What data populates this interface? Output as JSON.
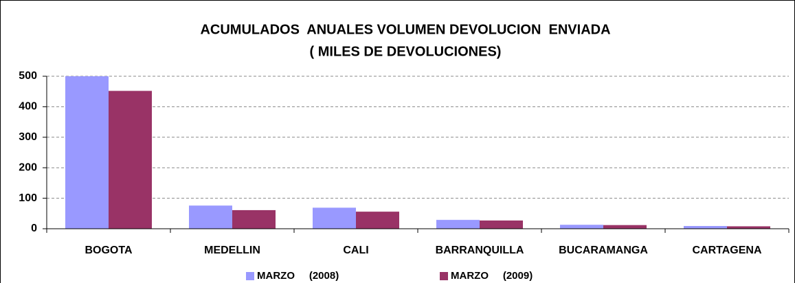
{
  "chart_data": {
    "type": "bar",
    "title": "ACUMULADOS  ANUALES VOLUMEN DEVOLUCION  ENVIADA",
    "subtitle": "( MILES DE DEVOLUCIONES)",
    "categories": [
      "BOGOTA",
      "MEDELLIN",
      "CALI",
      "BARRANQUILLA",
      "BUCARAMANGA",
      "CARTAGENA"
    ],
    "series": [
      {
        "name": "MARZO     (2008)",
        "color": "#9999ff",
        "values": [
          500,
          76,
          69,
          29,
          13,
          9
        ]
      },
      {
        "name": "MARZO     (2009)",
        "color": "#993366",
        "values": [
          452,
          61,
          56,
          27,
          12,
          8
        ]
      }
    ],
    "ylim": [
      0,
      500
    ],
    "yticks": [
      0,
      100,
      200,
      300,
      400,
      500
    ],
    "grid": true,
    "legend": "bottom"
  }
}
